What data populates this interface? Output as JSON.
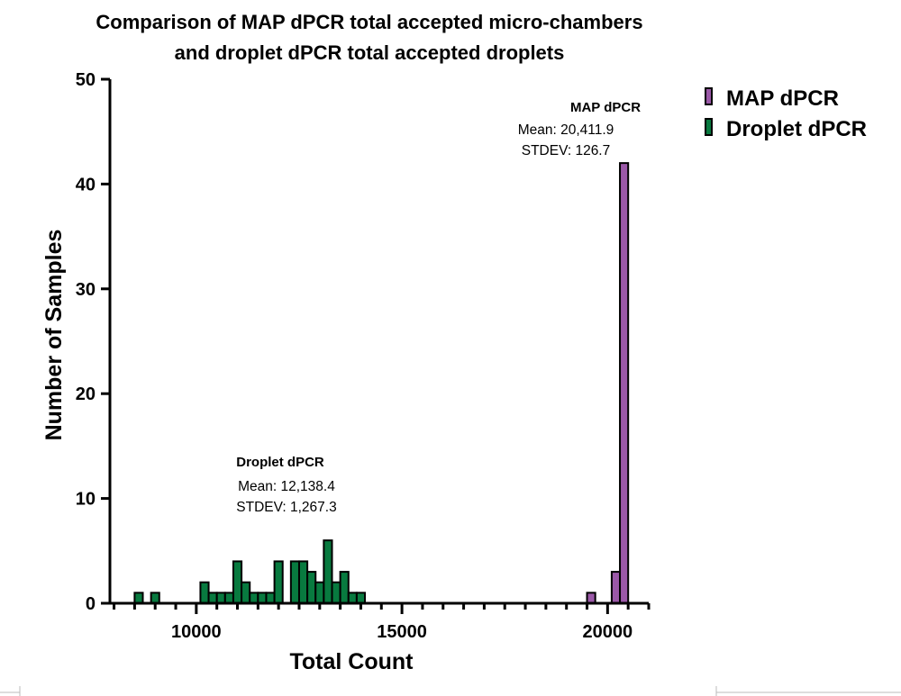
{
  "chart_data": {
    "type": "bar",
    "title_lines": [
      "Comparison of MAP dPCR total accepted micro-chambers",
      "and droplet dPCR total accepted droplets"
    ],
    "xlabel": "Total Count",
    "ylabel": "Number of Samples",
    "xlim": [
      7900,
      21000
    ],
    "ylim": [
      0,
      50
    ],
    "x_ticks": [
      10000,
      15000,
      20000
    ],
    "x_minor_step": 500,
    "y_ticks": [
      0,
      10,
      20,
      30,
      40,
      50
    ],
    "bin_width": 200,
    "grid": false,
    "legend_position": "top-right",
    "series": [
      {
        "name": "MAP dPCR",
        "color": "#9b59a8",
        "x": [
          19600,
          20200,
          20400
        ],
        "values": [
          1,
          3,
          42
        ],
        "annotation": {
          "title": "MAP dPCR",
          "mean": "Mean: 20,411.9",
          "stdev": "STDEV: 126.7"
        }
      },
      {
        "name": "Droplet dPCR",
        "color": "#087a3f",
        "x": [
          8600,
          9000,
          10200,
          10400,
          10600,
          10800,
          11000,
          11200,
          11400,
          11600,
          11800,
          12000,
          12400,
          12600,
          12800,
          13000,
          13200,
          13400,
          13600,
          13800,
          14000
        ],
        "values": [
          1,
          1,
          2,
          1,
          1,
          1,
          4,
          2,
          1,
          1,
          1,
          4,
          4,
          4,
          3,
          2,
          6,
          2,
          3,
          1,
          1
        ],
        "annotation": {
          "title": "Droplet dPCR",
          "mean": "Mean: 12,138.4",
          "stdev": "STDEV: 1,267.3"
        }
      }
    ]
  }
}
